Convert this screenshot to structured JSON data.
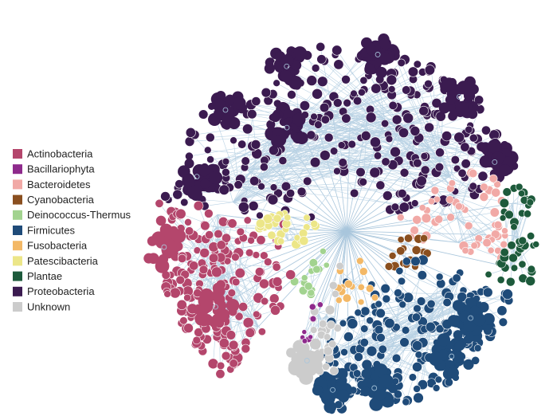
{
  "legend": {
    "items": [
      {
        "label": "Actinobacteria",
        "color": "#b4466c"
      },
      {
        "label": "Bacillariophyta",
        "color": "#8e2a8c"
      },
      {
        "label": "Bacteroidetes",
        "color": "#f1a9a6"
      },
      {
        "label": "Cyanobacteria",
        "color": "#8a4f1f"
      },
      {
        "label": "Deinococcus-Thermus",
        "color": "#a2d38f"
      },
      {
        "label": "Firmicutes",
        "color": "#1f4b79"
      },
      {
        "label": "Fusobacteria",
        "color": "#f3b866"
      },
      {
        "label": "Patescibacteria",
        "color": "#ece688"
      },
      {
        "label": "Plantae",
        "color": "#1d5a3b"
      },
      {
        "label": "Proteobacteria",
        "color": "#3b1b50"
      },
      {
        "label": "Unknown",
        "color": "#cccccc"
      }
    ]
  }
}
